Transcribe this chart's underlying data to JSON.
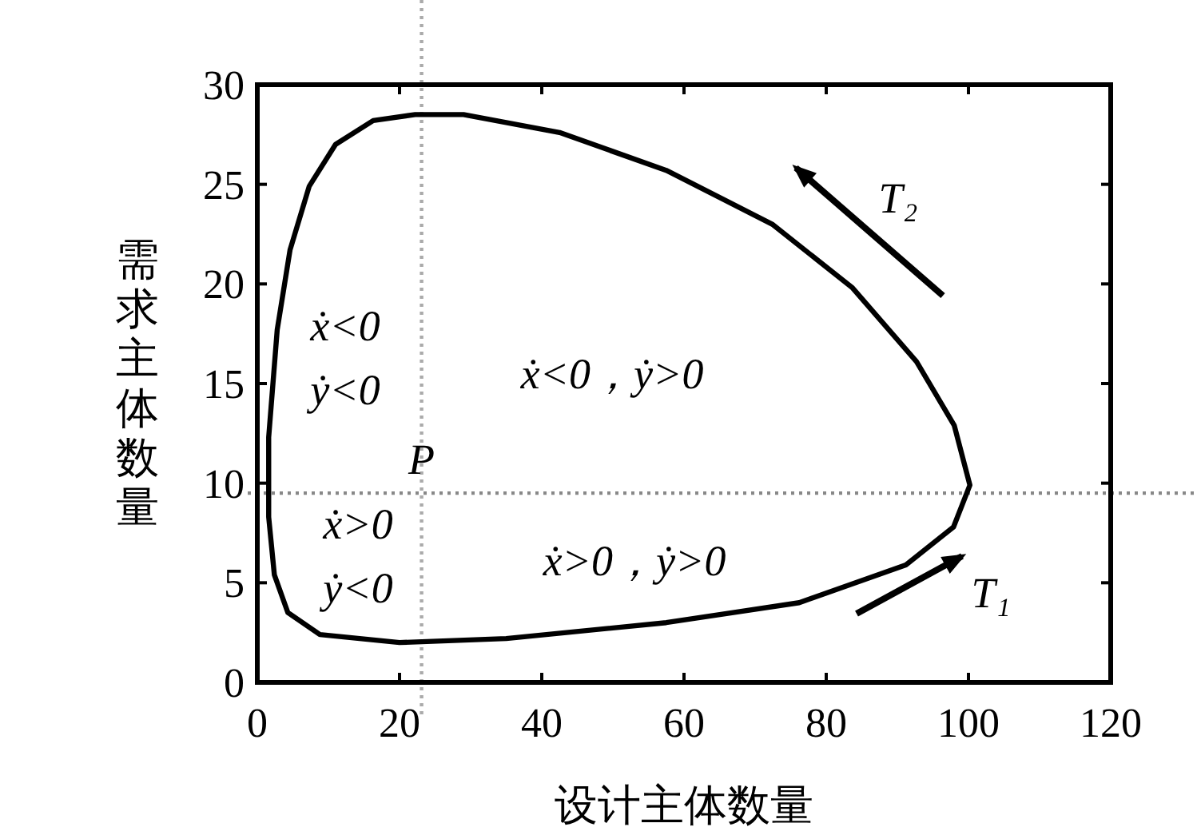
{
  "chart_data": {
    "type": "line",
    "xlabel": "设计主体数量",
    "ylabel": "需求主体数量",
    "xlim": [
      0,
      120
    ],
    "ylim": [
      0,
      30
    ],
    "xticks": [
      0,
      20,
      40,
      60,
      80,
      100,
      120
    ],
    "yticks": [
      0,
      5,
      10,
      15,
      20,
      25,
      30
    ],
    "grid": false,
    "ref_lines": [
      {
        "axis": "x",
        "value": 23.1,
        "color": "#aaaaaa",
        "line_style": "dotted"
      },
      {
        "axis": "y",
        "value": 9.5,
        "color": "#888888",
        "line_style": "dotted"
      }
    ],
    "annotations": [
      "ẋ<0",
      "ẏ<0",
      "ẋ<0，ẏ>0",
      {
        "text": "P",
        "x": 23.1,
        "y": 9.5
      },
      "ẋ>0",
      "ẏ<0",
      "ẋ>0，ẏ>0",
      "T₂",
      "T₁"
    ]
  }
}
